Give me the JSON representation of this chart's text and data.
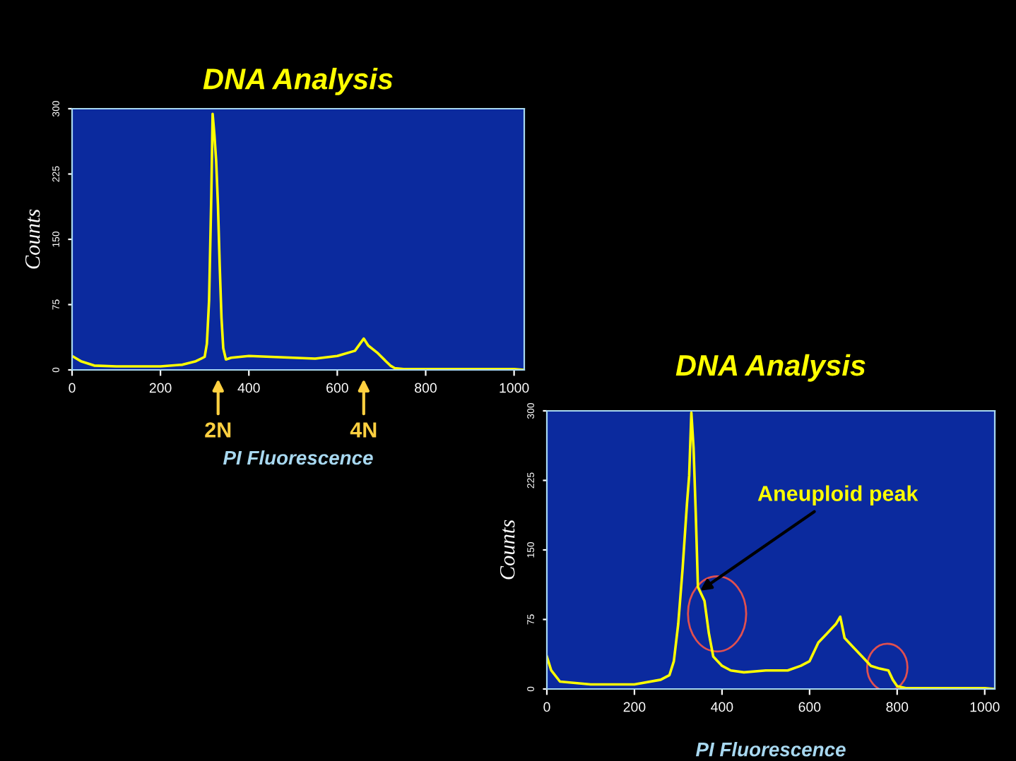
{
  "chart_data": [
    {
      "type": "line",
      "title": "DNA Analysis",
      "xlabel": "PI Fluorescence",
      "ylabel": "Counts",
      "series": [
        {
          "color": "#ffff00",
          "x": [
            0,
            20,
            50,
            100,
            200,
            250,
            280,
            300,
            305,
            310,
            315,
            318,
            322,
            326,
            330,
            334,
            338,
            342,
            348,
            360,
            400,
            450,
            500,
            550,
            600,
            640,
            660,
            670,
            690,
            710,
            720,
            730,
            750,
            1000,
            1023
          ],
          "values": [
            16,
            10,
            5,
            4,
            4,
            6,
            10,
            15,
            30,
            80,
            200,
            294,
            270,
            240,
            190,
            120,
            60,
            25,
            12,
            14,
            16,
            15,
            14,
            13,
            16,
            22,
            36,
            28,
            20,
            10,
            5,
            2,
            1,
            1,
            0
          ]
        }
      ],
      "xlim": [
        0,
        1023
      ],
      "xticks": [
        0,
        200,
        400,
        600,
        800,
        1000
      ],
      "ylim": [
        0,
        300
      ],
      "yticks": [
        0,
        75,
        150,
        225,
        300
      ],
      "grid": false,
      "legend": false,
      "annotations": [
        "2N",
        "4N"
      ]
    },
    {
      "type": "line",
      "title": "DNA Analysis",
      "xlabel": "PI Fluorescence",
      "ylabel": "Counts",
      "series": [
        {
          "color": "#ffff00",
          "x": [
            0,
            10,
            30,
            100,
            200,
            260,
            280,
            290,
            300,
            310,
            320,
            325,
            330,
            335,
            340,
            345,
            350,
            360,
            370,
            380,
            400,
            420,
            450,
            500,
            550,
            580,
            600,
            620,
            640,
            660,
            670,
            680,
            700,
            720,
            740,
            760,
            780,
            790,
            800,
            820,
            1000,
            1023
          ],
          "values": [
            35,
            20,
            8,
            5,
            5,
            10,
            15,
            30,
            70,
            130,
            200,
            230,
            298,
            260,
            190,
            110,
            105,
            95,
            60,
            35,
            25,
            20,
            18,
            20,
            20,
            25,
            30,
            50,
            60,
            70,
            78,
            55,
            45,
            35,
            25,
            22,
            20,
            10,
            3,
            1,
            1,
            0
          ]
        }
      ],
      "xlim": [
        0,
        1023
      ],
      "xticks": [
        0,
        200,
        400,
        600,
        800,
        1000
      ],
      "ylim": [
        0,
        300
      ],
      "yticks": [
        0,
        75,
        150,
        225,
        300
      ],
      "grid": false,
      "legend": false,
      "annotations": [
        {
          "text": "Aneuploid peak",
          "x": 350,
          "y": 106
        }
      ]
    }
  ]
}
